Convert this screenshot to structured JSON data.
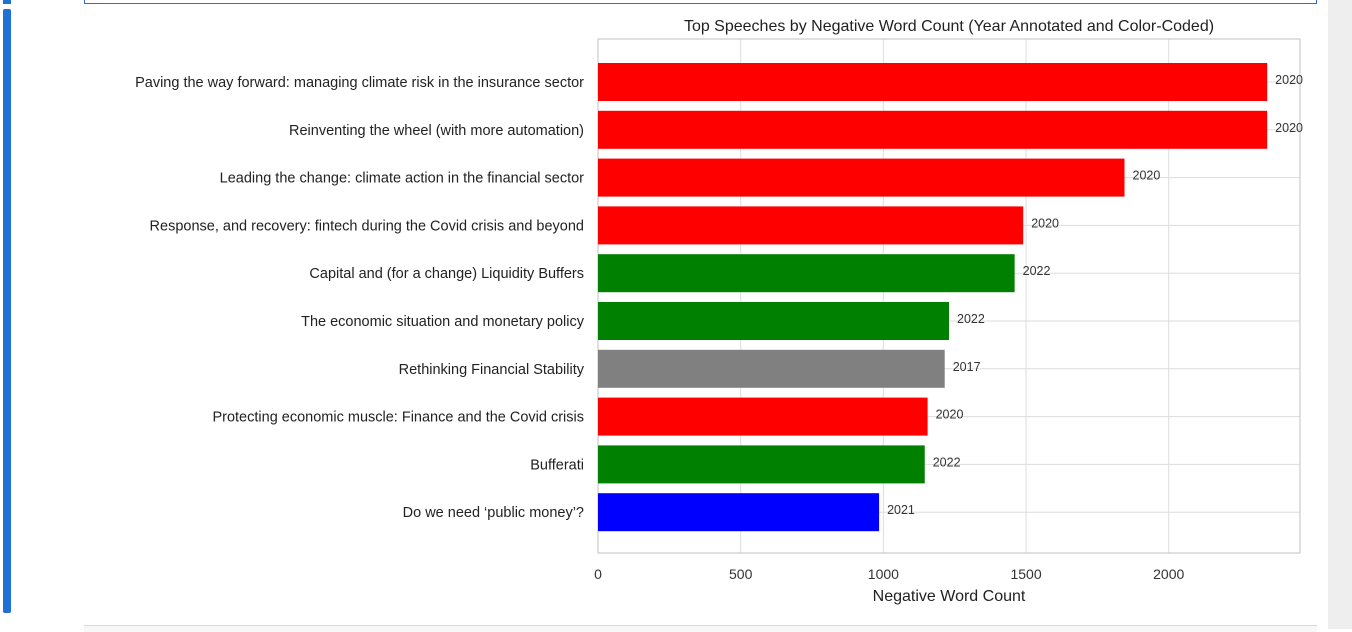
{
  "chart_data": {
    "type": "bar",
    "orientation": "horizontal",
    "title": "Top Speeches by Negative Word Count (Year Annotated and Color-Coded)",
    "xlabel": "Negative Word Count",
    "ylabel": "",
    "xlim": [
      0,
      2460
    ],
    "xticks": [
      0,
      500,
      1000,
      1500,
      2000
    ],
    "grid": true,
    "categories": [
      "Paving the way forward: managing climate risk in the insurance sector",
      "Reinventing the wheel (with more automation)",
      "Leading the change: climate action in the financial sector",
      "Response, and recovery: fintech during the Covid crisis and beyond",
      "Capital and (for a change) Liquidity Buffers",
      "The economic situation and monetary policy",
      "Rethinking Financial Stability",
      "Protecting economic muscle: Finance and the Covid crisis",
      "Bufferati",
      "Do we need ‘public money’?"
    ],
    "values": [
      2345,
      2345,
      1845,
      1490,
      1460,
      1230,
      1215,
      1155,
      1145,
      985
    ],
    "years": [
      "2020",
      "2020",
      "2020",
      "2020",
      "2022",
      "2022",
      "2017",
      "2020",
      "2022",
      "2021"
    ],
    "year_colors": {
      "2017": "#808080",
      "2020": "#ff0000",
      "2021": "#0000ff",
      "2022": "#008000"
    }
  }
}
